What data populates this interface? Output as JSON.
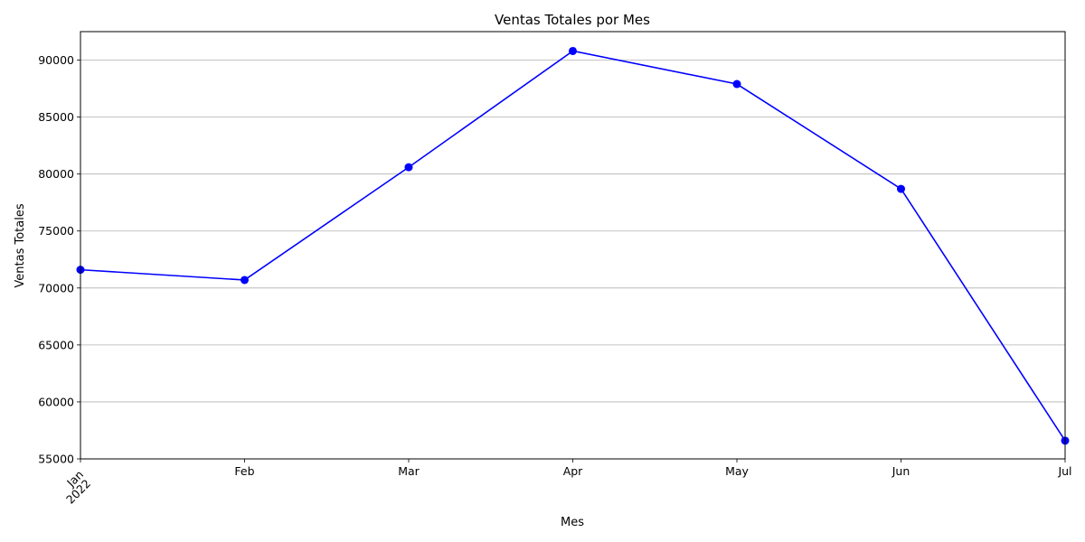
{
  "chart_data": {
    "type": "line",
    "title": "Ventas Totales por Mes",
    "xlabel": "Mes",
    "ylabel": "Ventas Totales",
    "categories": [
      "Jan",
      "Feb",
      "Mar",
      "Apr",
      "May",
      "Jun",
      "Jul"
    ],
    "year_label": "2022",
    "values": [
      71600,
      70700,
      80600,
      90800,
      87900,
      78700,
      56600
    ],
    "ylim": [
      55000,
      92500
    ],
    "yticks": [
      55000,
      60000,
      65000,
      70000,
      75000,
      80000,
      85000,
      90000
    ],
    "grid": "horizontal",
    "line_color": "#0000ff",
    "marker": "circle"
  }
}
